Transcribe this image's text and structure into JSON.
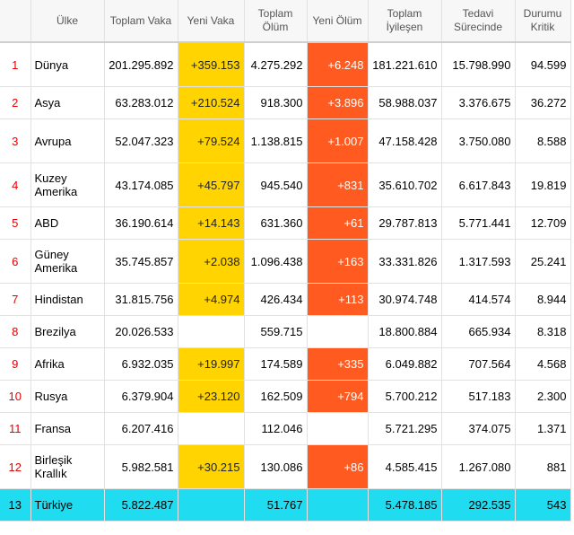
{
  "headers": {
    "rank": "",
    "country": "Ülke",
    "total_cases": "Toplam Vaka",
    "new_cases": "Yeni Vaka",
    "total_deaths": "Toplam Ölüm",
    "new_deaths": "Yeni Ölüm",
    "total_recovered": "Toplam İyileşen",
    "active": "Tedavi Sürecinde",
    "critical": "Durumu Kritik"
  },
  "rows": [
    {
      "rank": "1",
      "country": "Dünya",
      "total_cases": "201.295.892",
      "new_cases": "+359.153",
      "total_deaths": "4.275.292",
      "new_deaths": "+6.248",
      "total_recovered": "181.221.610",
      "active": "15.798.990",
      "critical": "94.599"
    },
    {
      "rank": "2",
      "country": "Asya",
      "total_cases": "63.283.012",
      "new_cases": "+210.524",
      "total_deaths": "918.300",
      "new_deaths": "+3.896",
      "total_recovered": "58.988.037",
      "active": "3.376.675",
      "critical": "36.272"
    },
    {
      "rank": "3",
      "country": "Avrupa",
      "total_cases": "52.047.323",
      "new_cases": "+79.524",
      "total_deaths": "1.138.815",
      "new_deaths": "+1.007",
      "total_recovered": "47.158.428",
      "active": "3.750.080",
      "critical": "8.588"
    },
    {
      "rank": "4",
      "country": "Kuzey Amerika",
      "total_cases": "43.174.085",
      "new_cases": "+45.797",
      "total_deaths": "945.540",
      "new_deaths": "+831",
      "total_recovered": "35.610.702",
      "active": "6.617.843",
      "critical": "19.819"
    },
    {
      "rank": "5",
      "country": "ABD",
      "total_cases": "36.190.614",
      "new_cases": "+14.143",
      "total_deaths": "631.360",
      "new_deaths": "+61",
      "total_recovered": "29.787.813",
      "active": "5.771.441",
      "critical": "12.709"
    },
    {
      "rank": "6",
      "country": "Güney Amerika",
      "total_cases": "35.745.857",
      "new_cases": "+2.038",
      "total_deaths": "1.096.438",
      "new_deaths": "+163",
      "total_recovered": "33.331.826",
      "active": "1.317.593",
      "critical": "25.241"
    },
    {
      "rank": "7",
      "country": "Hindistan",
      "total_cases": "31.815.756",
      "new_cases": "+4.974",
      "total_deaths": "426.434",
      "new_deaths": "+113",
      "total_recovered": "30.974.748",
      "active": "414.574",
      "critical": "8.944"
    },
    {
      "rank": "8",
      "country": "Brezilya",
      "total_cases": "20.026.533",
      "new_cases": "",
      "total_deaths": "559.715",
      "new_deaths": "",
      "total_recovered": "18.800.884",
      "active": "665.934",
      "critical": "8.318"
    },
    {
      "rank": "9",
      "country": "Afrika",
      "total_cases": "6.932.035",
      "new_cases": "+19.997",
      "total_deaths": "174.589",
      "new_deaths": "+335",
      "total_recovered": "6.049.882",
      "active": "707.564",
      "critical": "4.568"
    },
    {
      "rank": "10",
      "country": "Rusya",
      "total_cases": "6.379.904",
      "new_cases": "+23.120",
      "total_deaths": "162.509",
      "new_deaths": "+794",
      "total_recovered": "5.700.212",
      "active": "517.183",
      "critical": "2.300"
    },
    {
      "rank": "11",
      "country": "Fransa",
      "total_cases": "6.207.416",
      "new_cases": "",
      "total_deaths": "112.046",
      "new_deaths": "",
      "total_recovered": "5.721.295",
      "active": "374.075",
      "critical": "1.371"
    },
    {
      "rank": "12",
      "country": "Birleşik Krallık",
      "total_cases": "5.982.581",
      "new_cases": "+30.215",
      "total_deaths": "130.086",
      "new_deaths": "+86",
      "total_recovered": "4.585.415",
      "active": "1.267.080",
      "critical": "881"
    },
    {
      "rank": "13",
      "country": "Türkiye",
      "total_cases": "5.822.487",
      "new_cases": "",
      "total_deaths": "51.767",
      "new_deaths": "",
      "total_recovered": "5.478.185",
      "active": "292.535",
      "critical": "543",
      "highlight": true
    }
  ],
  "colors": {
    "new_cases_bg": "#ffd400",
    "new_deaths_bg": "#ff5a1f",
    "highlight_bg": "#1fdcf0",
    "rank_text": "#e60000"
  }
}
